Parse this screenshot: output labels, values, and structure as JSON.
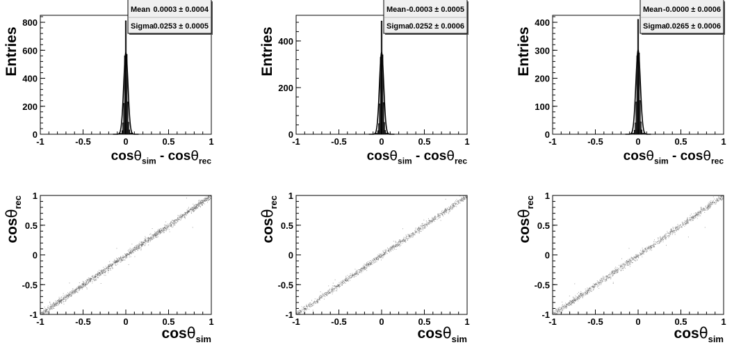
{
  "figure": {
    "rows": [
      {
        "panels": [
          {
            "type": "histogram",
            "xlabel": {
              "base": "cos",
              "greek": "θ",
              "sub1": "sim",
              "op": " - ",
              "sub2": "rec"
            },
            "ylabel": "Entries",
            "stats": {
              "mean_label": "Mean",
              "mean_value": "0.0003 ± 0.0004",
              "sigma_label": "Sigma",
              "sigma_value": "0.0253 ± 0.0005"
            }
          },
          {
            "type": "histogram",
            "xlabel": {
              "base": "cos",
              "greek": "θ",
              "sub1": "sim",
              "op": " - ",
              "sub2": "rec"
            },
            "ylabel": "Entries",
            "stats": {
              "mean_label": "Mean",
              "mean_value": "-0.0003 ± 0.0005",
              "sigma_label": "Sigma",
              "sigma_value": "0.0252 ± 0.0006"
            }
          },
          {
            "type": "histogram",
            "xlabel": {
              "base": "cos",
              "greek": "θ",
              "sub1": "sim",
              "op": " - ",
              "sub2": "rec"
            },
            "ylabel": "Entries",
            "stats": {
              "mean_label": "Mean",
              "mean_value": "-0.0000 ± 0.0006",
              "sigma_label": "Sigma",
              "sigma_value": "0.0265 ± 0.0006"
            }
          }
        ]
      },
      {
        "panels": [
          {
            "type": "scatter",
            "xlabel": {
              "base": "cos",
              "greek": "θ",
              "sub1": "sim"
            },
            "ylabel": {
              "base": "cos",
              "greek": "θ",
              "sub1": "rec"
            }
          },
          {
            "type": "scatter",
            "xlabel": {
              "base": "cos",
              "greek": "θ",
              "sub1": "sim"
            },
            "ylabel": {
              "base": "cos",
              "greek": "θ",
              "sub1": "rec"
            }
          },
          {
            "type": "scatter",
            "xlabel": {
              "base": "cos",
              "greek": "θ",
              "sub1": "sim"
            },
            "ylabel": {
              "base": "cos",
              "greek": "θ",
              "sub1": "rec"
            }
          }
        ]
      }
    ]
  },
  "chart_data": [
    {
      "type": "bar",
      "xlim": [
        -1,
        1
      ],
      "ylim": [
        0,
        850
      ],
      "xticks": [
        "-1",
        "-0.5",
        "0",
        "0.5",
        "1"
      ],
      "yticks": [
        {
          "v": 0,
          "t": "0"
        },
        {
          "v": 200,
          "t": "200"
        },
        {
          "v": 400,
          "t": "400"
        },
        {
          "v": 600,
          "t": "600"
        },
        {
          "v": 800,
          "t": "800"
        }
      ],
      "bins": [
        {
          "x": -0.08,
          "y": 2
        },
        {
          "x": -0.06,
          "y": 6
        },
        {
          "x": -0.04,
          "y": 25
        },
        {
          "x": -0.03,
          "y": 80
        },
        {
          "x": -0.02,
          "y": 220
        },
        {
          "x": -0.01,
          "y": 560
        },
        {
          "x": 0.0,
          "y": 810
        },
        {
          "x": 0.01,
          "y": 570
        },
        {
          "x": 0.02,
          "y": 230
        },
        {
          "x": 0.03,
          "y": 85
        },
        {
          "x": 0.04,
          "y": 30
        },
        {
          "x": 0.06,
          "y": 8
        },
        {
          "x": 0.08,
          "y": 3
        }
      ],
      "fit": {
        "mean": 0.0003,
        "sigma": 0.0253,
        "amplitude": 580
      }
    },
    {
      "type": "bar",
      "xlim": [
        -1,
        1
      ],
      "ylim": [
        0,
        510
      ],
      "xticks": [
        "-1",
        "-0.5",
        "0",
        "0.5",
        "1"
      ],
      "yticks": [
        {
          "v": 0,
          "t": "0"
        },
        {
          "v": 200,
          "t": "200"
        },
        {
          "v": 400,
          "t": "400"
        }
      ],
      "bins": [
        {
          "x": -0.08,
          "y": 1
        },
        {
          "x": -0.06,
          "y": 4
        },
        {
          "x": -0.04,
          "y": 15
        },
        {
          "x": -0.03,
          "y": 45
        },
        {
          "x": -0.02,
          "y": 130
        },
        {
          "x": -0.01,
          "y": 330
        },
        {
          "x": 0.0,
          "y": 485
        },
        {
          "x": 0.01,
          "y": 340
        },
        {
          "x": 0.02,
          "y": 135
        },
        {
          "x": 0.03,
          "y": 50
        },
        {
          "x": 0.04,
          "y": 16
        },
        {
          "x": 0.06,
          "y": 5
        },
        {
          "x": 0.08,
          "y": 1
        }
      ],
      "fit": {
        "mean": -0.0003,
        "sigma": 0.0252,
        "amplitude": 350
      }
    },
    {
      "type": "bar",
      "xlim": [
        -1,
        1
      ],
      "ylim": [
        0,
        425
      ],
      "xticks": [
        "-1",
        "-0.5",
        "0",
        "0.5",
        "1"
      ],
      "yticks": [
        {
          "v": 0,
          "t": "0"
        },
        {
          "v": 100,
          "t": "100"
        },
        {
          "v": 200,
          "t": "200"
        },
        {
          "v": 300,
          "t": "300"
        },
        {
          "v": 400,
          "t": "400"
        }
      ],
      "bins": [
        {
          "x": -0.08,
          "y": 1
        },
        {
          "x": -0.06,
          "y": 4
        },
        {
          "x": -0.04,
          "y": 14
        },
        {
          "x": -0.03,
          "y": 40
        },
        {
          "x": -0.02,
          "y": 115
        },
        {
          "x": -0.01,
          "y": 280
        },
        {
          "x": 0.0,
          "y": 410
        },
        {
          "x": 0.01,
          "y": 290
        },
        {
          "x": 0.02,
          "y": 120
        },
        {
          "x": 0.03,
          "y": 44
        },
        {
          "x": 0.04,
          "y": 15
        },
        {
          "x": 0.06,
          "y": 4
        },
        {
          "x": 0.08,
          "y": 1
        }
      ],
      "fit": {
        "mean": 0.0,
        "sigma": 0.0265,
        "amplitude": 300
      }
    },
    {
      "type": "scatter",
      "xlim": [
        -1,
        1
      ],
      "ylim": [
        -1,
        1
      ],
      "xticks": [
        "-1",
        "-0.5",
        "0",
        "0.5",
        "1"
      ],
      "yticks": [
        {
          "v": -1,
          "t": "-1"
        },
        {
          "v": -0.5,
          "t": "-0.5"
        },
        {
          "v": 0,
          "t": "0"
        },
        {
          "v": 0.5,
          "t": "0.5"
        },
        {
          "v": 1,
          "t": "1"
        }
      ],
      "points": {
        "n": 1800,
        "relation": "y = x",
        "spread": 0.026
      }
    },
    {
      "type": "scatter",
      "xlim": [
        -1,
        1
      ],
      "ylim": [
        -1,
        1
      ],
      "xticks": [
        "-1",
        "-0.5",
        "0",
        "0.5",
        "1"
      ],
      "yticks": [
        {
          "v": -1,
          "t": "-1"
        },
        {
          "v": -0.5,
          "t": "-0.5"
        },
        {
          "v": 0,
          "t": "0"
        },
        {
          "v": 0.5,
          "t": "0.5"
        },
        {
          "v": 1,
          "t": "1"
        }
      ],
      "points": {
        "n": 1300,
        "relation": "y = x",
        "spread": 0.025
      }
    },
    {
      "type": "scatter",
      "xlim": [
        -1,
        1
      ],
      "ylim": [
        -1,
        1
      ],
      "xticks": [
        "-1",
        "-0.5",
        "0",
        "0.5",
        "1"
      ],
      "yticks": [
        {
          "v": -1,
          "t": "-1"
        },
        {
          "v": -0.5,
          "t": "-0.5"
        },
        {
          "v": 0,
          "t": "0"
        },
        {
          "v": 0.5,
          "t": "0.5"
        },
        {
          "v": 1,
          "t": "1"
        }
      ],
      "points": {
        "n": 1300,
        "relation": "y = x",
        "spread": 0.027
      }
    }
  ]
}
